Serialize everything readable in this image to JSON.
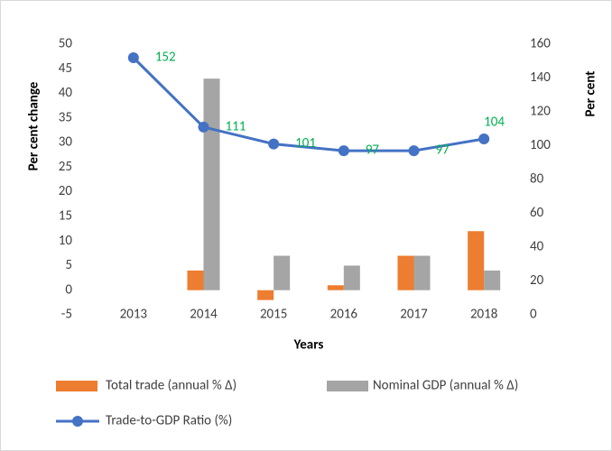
{
  "chart_data": {
    "type": "bar",
    "categories": [
      "2013",
      "2014",
      "2015",
      "2016",
      "2017",
      "2018"
    ],
    "x_label": "Years",
    "y_label": "Per cent change",
    "y2_label": "Per cent",
    "ylim": [
      -5,
      50
    ],
    "yticks": [
      -5,
      0,
      5,
      10,
      15,
      20,
      25,
      30,
      35,
      40,
      45,
      50
    ],
    "y2lim": [
      0,
      160
    ],
    "y2ticks": [
      0,
      20,
      40,
      60,
      80,
      100,
      120,
      140,
      160
    ],
    "series": [
      {
        "name": "Total trade (annual % Δ)",
        "type": "bar",
        "color": "#ed7d31",
        "values": [
          null,
          4,
          -2,
          1,
          7,
          12
        ]
      },
      {
        "name": "Nominal GDP (annual % Δ)",
        "type": "bar",
        "color": "#a5a5a5",
        "values": [
          null,
          43,
          7,
          5,
          7,
          4
        ]
      },
      {
        "name": "Trade-to-GDP Ratio (%)",
        "type": "line",
        "axis": "y2",
        "color": "#4472c4",
        "label_color": "#00b050",
        "values": [
          152,
          111,
          101,
          97,
          97,
          104
        ]
      }
    ]
  }
}
